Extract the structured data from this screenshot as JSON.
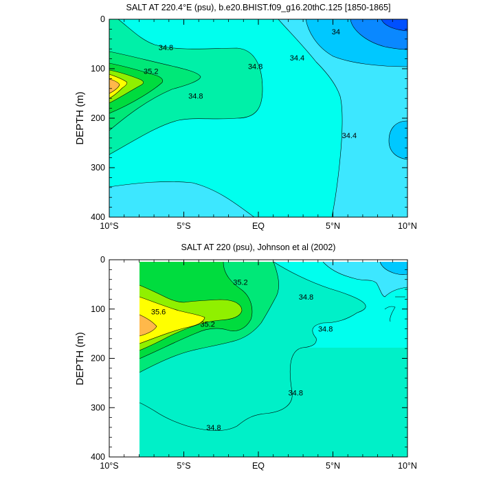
{
  "chart_data": [
    {
      "type": "contour",
      "title": "SALT AT 220.4°E (psu), b.e20.BHIST.f09_g16.20thC.125 [1850-1865]",
      "ylabel": "DEPTH (m)",
      "xlabel": "",
      "xlim": [
        -10,
        10
      ],
      "ylim": [
        400,
        0
      ],
      "x_ticks": [
        {
          "value": -10,
          "label": "10°S"
        },
        {
          "value": -5,
          "label": "5°S"
        },
        {
          "value": 0,
          "label": "EQ"
        },
        {
          "value": 5,
          "label": "5°N"
        },
        {
          "value": 10,
          "label": "10°N"
        }
      ],
      "y_ticks": [
        {
          "value": 0,
          "label": "0"
        },
        {
          "value": 100,
          "label": "100"
        },
        {
          "value": 200,
          "label": "200"
        },
        {
          "value": 300,
          "label": "300"
        },
        {
          "value": 400,
          "label": "400"
        }
      ],
      "contour_labels": [
        {
          "text": "34.8",
          "x": -6.2,
          "y": 57
        },
        {
          "text": "35.2",
          "x": -7.2,
          "y": 105
        },
        {
          "text": "34.8",
          "x": -4.2,
          "y": 155
        },
        {
          "text": "34.8",
          "x": -0.2,
          "y": 95
        },
        {
          "text": "34.4",
          "x": 2.6,
          "y": 78
        },
        {
          "text": "34",
          "x": 5.2,
          "y": 25
        },
        {
          "text": "34.4",
          "x": 6.1,
          "y": 235
        }
      ],
      "fill_levels": [
        {
          "level": "<34",
          "color": "#0050ff"
        },
        {
          "level": "34-34.2",
          "color": "#0a88ff"
        },
        {
          "level": "34.2-34.4",
          "color": "#00c8ff"
        },
        {
          "level": "34.4-34.6",
          "color": "#3de7ff"
        },
        {
          "level": "34.6-34.8",
          "color": "#00ffee"
        },
        {
          "level": "34.8-35.0",
          "color": "#00f0a8"
        },
        {
          "level": "35.0-35.2",
          "color": "#00e878"
        },
        {
          "level": "35.2-35.4",
          "color": "#00dc3e"
        },
        {
          "level": "35.4-35.6",
          "color": "#90f000"
        },
        {
          "level": "35.6-35.8",
          "color": "#ffff00"
        },
        {
          "level": ">35.8",
          "color": "#ffb84a"
        }
      ]
    },
    {
      "type": "contour",
      "title": "SALT AT 220 (psu), Johnson et al (2002)",
      "ylabel": "DEPTH (m)",
      "xlabel": "",
      "xlim": [
        -10,
        10
      ],
      "ylim": [
        400,
        0
      ],
      "data_xlim": [
        -8,
        10
      ],
      "x_ticks": [
        {
          "value": -10,
          "label": "10°S"
        },
        {
          "value": -5,
          "label": "5°S"
        },
        {
          "value": 0,
          "label": "EQ"
        },
        {
          "value": 5,
          "label": "5°N"
        },
        {
          "value": 10,
          "label": "10°N"
        }
      ],
      "y_ticks": [
        {
          "value": 0,
          "label": "0"
        },
        {
          "value": 100,
          "label": "100"
        },
        {
          "value": 200,
          "label": "200"
        },
        {
          "value": 300,
          "label": "300"
        },
        {
          "value": 400,
          "label": "400"
        }
      ],
      "contour_labels": [
        {
          "text": "35.2",
          "x": -1.2,
          "y": 45
        },
        {
          "text": "35.6",
          "x": -6.7,
          "y": 105
        },
        {
          "text": "35.2",
          "x": -3.4,
          "y": 130
        },
        {
          "text": "34.8",
          "x": 3.2,
          "y": 75
        },
        {
          "text": "34.8",
          "x": 4.5,
          "y": 140
        },
        {
          "text": "34.8",
          "x": 2.5,
          "y": 270
        },
        {
          "text": "34.8",
          "x": -3.0,
          "y": 340
        }
      ]
    }
  ]
}
